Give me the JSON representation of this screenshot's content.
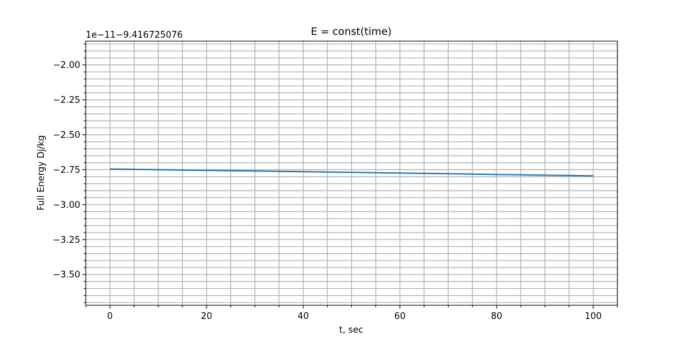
{
  "chart_data": {
    "type": "line",
    "title": "E = const(time)",
    "xlabel": "t, sec",
    "ylabel": "Full Energy Dj/kg",
    "offset_text": "1e−11−9.416725076",
    "xlim": [
      -5,
      105
    ],
    "ylim": [
      -3.72,
      -1.83
    ],
    "xticks": [
      0,
      20,
      40,
      60,
      80,
      100
    ],
    "xtick_labels": [
      "0",
      "20",
      "40",
      "60",
      "80",
      "100"
    ],
    "yticks": [
      -2.0,
      -2.25,
      -2.5,
      -2.75,
      -3.0,
      -3.25,
      -3.5
    ],
    "ytick_labels": [
      "−2.00",
      "−2.25",
      "−2.50",
      "−2.75",
      "−3.00",
      "−3.25",
      "−3.50"
    ],
    "x_minor_step": 5,
    "y_minor_step": 0.05,
    "grid": true,
    "series": [
      {
        "x": [
          0,
          10,
          20,
          30,
          40,
          50,
          60,
          70,
          80,
          90,
          100
        ],
        "values": [
          -2.745,
          -2.75,
          -2.755,
          -2.759,
          -2.764,
          -2.769,
          -2.774,
          -2.779,
          -2.784,
          -2.789,
          -2.794
        ]
      }
    ],
    "colors": {
      "line": "#1f77b4",
      "grid": "#b0b0b0",
      "axes": "#000000"
    }
  }
}
